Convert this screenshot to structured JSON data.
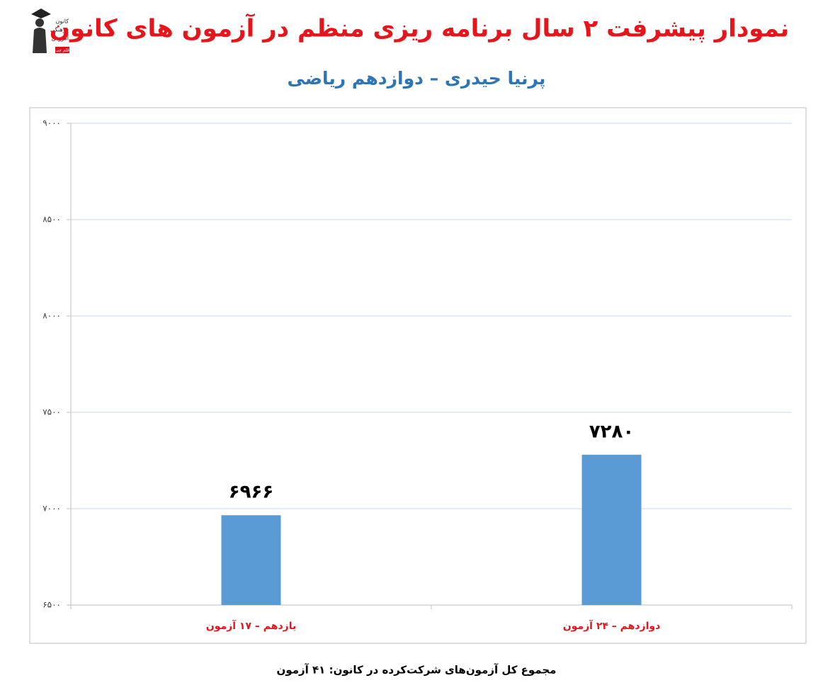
{
  "chart_data": {
    "type": "bar",
    "title": "نمودار پیشرفت ۲ سال برنامه ریزی منظم در آزمون های کانون",
    "subtitle": "پرنیا حیدری – دوازدهم ریاضی",
    "categories": [
      "یازدهم – ۱۷ آزمون",
      "دوازدهم – ۲۴ آزمون"
    ],
    "values": [
      6966,
      7280
    ],
    "value_labels": [
      "۶۹۶۶",
      "۷۲۸۰"
    ],
    "color": "#5b9bd5",
    "ylim": [
      6500,
      9000
    ],
    "yticks": [
      {
        "value": 6500,
        "label": "۶۵۰۰"
      },
      {
        "value": 7000,
        "label": "۷۰۰۰"
      },
      {
        "value": 7500,
        "label": "۷۵۰۰"
      },
      {
        "value": 8000,
        "label": "۸۰۰۰"
      },
      {
        "value": 8500,
        "label": "۸۵۰۰"
      },
      {
        "value": 9000,
        "label": "۹۰۰۰"
      }
    ],
    "grid": true,
    "footnote": "مجموع کل آزمون‌های شرکت‌کرده در کانون: ۴۱ آزمون"
  },
  "logo": [
    "کانون",
    "فرهنگی",
    "آموزش",
    "قلم چی"
  ]
}
